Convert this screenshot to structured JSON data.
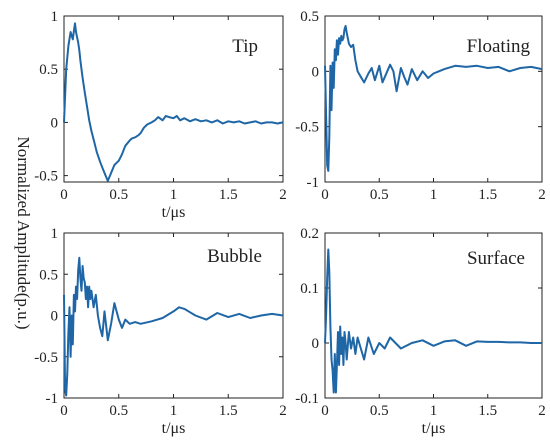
{
  "figure": {
    "ylabel": "Normalized Amplitude(p.u.)"
  },
  "chart_data": [
    {
      "type": "line",
      "annotation": "Tip",
      "xlabel": "t/μs",
      "xlim": [
        0,
        2
      ],
      "ylim": [
        -0.56,
        1.0
      ],
      "xticks": [
        "0",
        "0.5",
        "1",
        "1.5",
        "2"
      ],
      "yticks": [
        {
          "v": 1,
          "label": "1"
        },
        {
          "v": 0.5,
          "label": "0.5"
        },
        {
          "v": 0,
          "label": "0"
        },
        {
          "v": -0.5,
          "label": "-0.5"
        }
      ],
      "grid": false,
      "color": "#1f66a6",
      "series": [
        {
          "x": [
            0,
            0.01,
            0.02,
            0.04,
            0.06,
            0.08,
            0.09,
            0.1,
            0.11,
            0.12,
            0.13,
            0.14,
            0.15,
            0.17,
            0.19,
            0.21,
            0.23,
            0.25,
            0.27,
            0.3,
            0.33,
            0.36,
            0.38,
            0.4,
            0.42,
            0.44,
            0.46,
            0.48,
            0.5,
            0.53,
            0.56,
            0.6,
            0.62,
            0.65,
            0.68,
            0.7,
            0.73,
            0.76,
            0.8,
            0.83,
            0.86,
            0.9,
            0.93,
            0.96,
            1.0,
            1.03,
            1.06,
            1.1,
            1.15,
            1.2,
            1.25,
            1.3,
            1.35,
            1.4,
            1.45,
            1.5,
            1.55,
            1.6,
            1.65,
            1.7,
            1.75,
            1.8,
            1.85,
            1.9,
            1.95,
            2.0
          ],
          "y": [
            0.0,
            0.25,
            0.5,
            0.72,
            0.85,
            0.78,
            0.86,
            0.93,
            0.85,
            0.8,
            0.75,
            0.68,
            0.58,
            0.42,
            0.28,
            0.15,
            0.02,
            -0.08,
            -0.16,
            -0.28,
            -0.37,
            -0.45,
            -0.5,
            -0.55,
            -0.5,
            -0.45,
            -0.4,
            -0.38,
            -0.36,
            -0.3,
            -0.22,
            -0.17,
            -0.15,
            -0.14,
            -0.12,
            -0.1,
            -0.05,
            -0.02,
            0.0,
            0.02,
            0.05,
            0.02,
            0.06,
            0.05,
            0.04,
            0.06,
            0.02,
            0.04,
            0.01,
            0.03,
            0.01,
            0.02,
            0.0,
            0.02,
            -0.01,
            0.01,
            0.0,
            0.01,
            -0.01,
            0.0,
            0.01,
            -0.01,
            0.0,
            0.0,
            -0.01,
            0.0
          ]
        }
      ]
    },
    {
      "type": "line",
      "annotation": "Floating",
      "xlabel": "",
      "xlim": [
        0,
        2
      ],
      "ylim": [
        -1.0,
        0.5
      ],
      "xticks": [
        "0",
        "0.5",
        "1",
        "1.5",
        "2"
      ],
      "yticks": [
        {
          "v": 0.5,
          "label": "0.5"
        },
        {
          "v": 0,
          "label": "0"
        },
        {
          "v": -0.5,
          "label": "-0.5"
        },
        {
          "v": -1,
          "label": "-1"
        }
      ],
      "grid": false,
      "color": "#1f66a6",
      "series": [
        {
          "x": [
            0,
            0.01,
            0.02,
            0.03,
            0.04,
            0.05,
            0.06,
            0.07,
            0.08,
            0.09,
            0.1,
            0.11,
            0.12,
            0.13,
            0.14,
            0.15,
            0.16,
            0.17,
            0.18,
            0.19,
            0.2,
            0.22,
            0.24,
            0.26,
            0.28,
            0.3,
            0.33,
            0.36,
            0.4,
            0.43,
            0.46,
            0.5,
            0.53,
            0.56,
            0.6,
            0.63,
            0.66,
            0.7,
            0.73,
            0.76,
            0.8,
            0.85,
            0.9,
            0.95,
            1.0,
            1.05,
            1.1,
            1.2,
            1.3,
            1.4,
            1.5,
            1.6,
            1.7,
            1.8,
            1.9,
            2.0
          ],
          "y": [
            0.05,
            -0.4,
            -0.85,
            -0.9,
            -0.6,
            0.05,
            -0.35,
            0.08,
            -0.15,
            0.2,
            0.1,
            0.28,
            0.15,
            0.3,
            0.25,
            0.32,
            0.28,
            0.3,
            0.38,
            0.41,
            0.35,
            0.25,
            0.22,
            0.24,
            0.1,
            0.0,
            -0.05,
            -0.1,
            -0.02,
            0.03,
            -0.08,
            0.05,
            -0.1,
            -0.03,
            0.06,
            0.0,
            -0.18,
            0.03,
            -0.05,
            -0.12,
            0.02,
            -0.08,
            0.0,
            -0.06,
            -0.02,
            0.0,
            0.02,
            0.05,
            0.04,
            0.05,
            0.03,
            0.04,
            0.0,
            0.03,
            0.04,
            0.02
          ]
        }
      ]
    },
    {
      "type": "line",
      "annotation": "Bubble",
      "xlabel": "t/μs",
      "xlim": [
        0,
        2
      ],
      "ylim": [
        -1.0,
        1.0
      ],
      "xticks": [
        "0",
        "0.5",
        "1",
        "1.5",
        "2"
      ],
      "yticks": [
        {
          "v": 1,
          "label": "1"
        },
        {
          "v": 0.5,
          "label": "0.5"
        },
        {
          "v": 0,
          "label": "0"
        },
        {
          "v": -0.5,
          "label": "-0.5"
        },
        {
          "v": -1,
          "label": "-1"
        }
      ],
      "grid": false,
      "color": "#1f66a6",
      "series": [
        {
          "x": [
            0,
            0.01,
            0.02,
            0.03,
            0.04,
            0.05,
            0.06,
            0.07,
            0.08,
            0.09,
            0.1,
            0.11,
            0.12,
            0.13,
            0.14,
            0.15,
            0.16,
            0.17,
            0.18,
            0.19,
            0.2,
            0.21,
            0.22,
            0.23,
            0.24,
            0.25,
            0.27,
            0.29,
            0.31,
            0.33,
            0.35,
            0.37,
            0.4,
            0.43,
            0.46,
            0.5,
            0.53,
            0.56,
            0.6,
            0.65,
            0.7,
            0.8,
            0.9,
            1.0,
            1.05,
            1.1,
            1.15,
            1.2,
            1.3,
            1.4,
            1.5,
            1.6,
            1.7,
            1.8,
            1.9,
            2.0
          ],
          "y": [
            0.25,
            -0.9,
            -0.97,
            -0.7,
            -0.2,
            0.1,
            -0.5,
            0.0,
            -0.35,
            0.25,
            0.05,
            0.35,
            0.2,
            0.55,
            0.7,
            0.45,
            0.3,
            0.6,
            0.45,
            0.4,
            0.2,
            0.35,
            0.1,
            0.35,
            0.2,
            0.3,
            0.1,
            0.25,
            0.0,
            -0.15,
            -0.25,
            0.05,
            -0.3,
            -0.1,
            0.15,
            -0.05,
            -0.15,
            -0.05,
            -0.1,
            -0.08,
            -0.1,
            -0.07,
            -0.03,
            0.05,
            0.1,
            0.08,
            0.04,
            0.0,
            -0.05,
            0.03,
            -0.02,
            0.02,
            -0.03,
            0.0,
            0.02,
            0.0
          ]
        }
      ]
    },
    {
      "type": "line",
      "annotation": "Surface",
      "xlabel": "t/μs",
      "xlim": [
        0,
        2
      ],
      "ylim": [
        -0.1,
        0.2
      ],
      "xticks": [
        "0",
        "0.5",
        "1",
        "1.5",
        "2"
      ],
      "yticks": [
        {
          "v": 0.2,
          "label": "0.2"
        },
        {
          "v": 0.1,
          "label": "0.1"
        },
        {
          "v": 0,
          "label": "0"
        },
        {
          "v": -0.1,
          "label": "-0.1"
        }
      ],
      "grid": false,
      "color": "#1f66a6",
      "series": [
        {
          "x": [
            0,
            0.01,
            0.02,
            0.03,
            0.04,
            0.05,
            0.06,
            0.07,
            0.08,
            0.09,
            0.1,
            0.11,
            0.12,
            0.13,
            0.14,
            0.15,
            0.16,
            0.17,
            0.18,
            0.19,
            0.2,
            0.22,
            0.24,
            0.26,
            0.28,
            0.3,
            0.33,
            0.36,
            0.4,
            0.45,
            0.5,
            0.55,
            0.6,
            0.7,
            0.8,
            0.9,
            1.0,
            1.1,
            1.2,
            1.3,
            1.4,
            1.5,
            1.6,
            1.7,
            1.8,
            1.9,
            2.0
          ],
          "y": [
            0.0,
            0.05,
            0.12,
            0.17,
            0.13,
            0.03,
            -0.03,
            -0.05,
            -0.09,
            -0.02,
            -0.09,
            -0.04,
            0.02,
            -0.04,
            0.03,
            -0.02,
            0.01,
            -0.04,
            0.02,
            0.0,
            -0.03,
            0.02,
            -0.01,
            0.01,
            -0.02,
            0.01,
            -0.01,
            -0.03,
            0.01,
            -0.02,
            0.0,
            -0.01,
            0.01,
            -0.01,
            0.0,
            0.005,
            -0.005,
            0.003,
            0.005,
            -0.005,
            0.003,
            0.002,
            0.002,
            0.001,
            0.001,
            0.0,
            0.0
          ]
        }
      ]
    }
  ]
}
